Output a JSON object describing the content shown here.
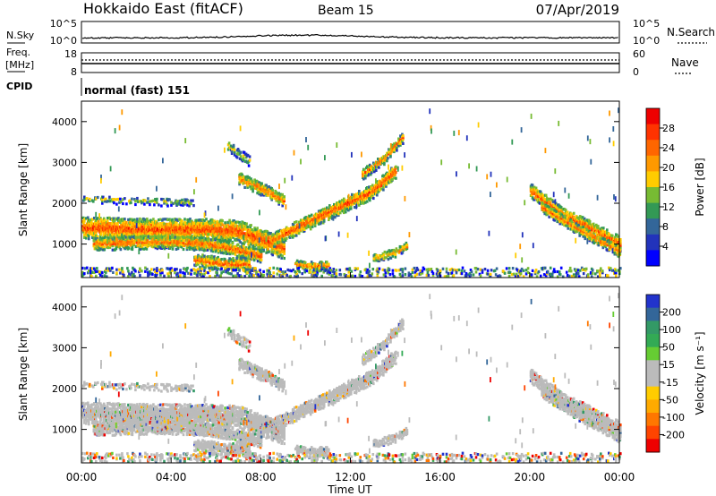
{
  "header": {
    "station": "Hokkaido East (fitACF)",
    "beam": "Beam 15",
    "date": "07/Apr/2019"
  },
  "noise_panel": {
    "left_label": "N.Sky",
    "right_label": "N.Search",
    "left_ticks": [
      "10^5",
      "10^0"
    ],
    "right_ticks": [
      "10^5",
      "10^0"
    ]
  },
  "freq_panel": {
    "left_label_1": "Freq.",
    "left_label_2": "[MHz]",
    "right_label": "Nave",
    "left_ticks": [
      "18",
      "8"
    ],
    "right_ticks": [
      "60",
      "0"
    ]
  },
  "cpid_panel": {
    "label": "CPID",
    "mode": "normal (fast) 151"
  },
  "power_colorbar": {
    "label": "Power [dB]",
    "ticks": [
      "28",
      "24",
      "20",
      "16",
      "12",
      "8",
      "4"
    ],
    "colors": [
      "#ee0000",
      "#ff3300",
      "#ff6600",
      "#ff9900",
      "#ffcc00",
      "#77bb33",
      "#339955",
      "#336699",
      "#2233bb",
      "#0000ff"
    ]
  },
  "velocity_colorbar": {
    "label": "Velocity [m s⁻¹]",
    "ticks": [
      "200",
      "100",
      "50",
      "15",
      "-15",
      "-50",
      "-100",
      "-200"
    ],
    "colors": [
      "#2233cc",
      "#336699",
      "#339966",
      "#33aa55",
      "#66cc33",
      "#bbbbbb",
      "#bbbbbb",
      "#ffcc00",
      "#ffaa00",
      "#ff7700",
      "#ff4400",
      "#ee0000"
    ]
  },
  "chart_data": [
    {
      "type": "heatmap",
      "title": "Power",
      "ylabel": "Slant Range [km]",
      "xlabel": "",
      "x_range_hours": [
        0,
        24
      ],
      "ylim": [
        180,
        4500
      ],
      "yticks": [
        1000,
        2000,
        3000,
        4000
      ],
      "features": [
        {
          "name": "band",
          "t": [
            0,
            3,
            6,
            7,
            8,
            9
          ],
          "r": [
            1400,
            1350,
            1350,
            1300,
            1100,
            900
          ],
          "half_width": 260,
          "level": 0.9
        },
        {
          "name": "band",
          "t": [
            0.5,
            3.5,
            5.5,
            6.5,
            8
          ],
          "r": [
            1000,
            1050,
            1000,
            900,
            700
          ],
          "half_width": 150,
          "level": 0.85
        },
        {
          "name": "band",
          "t": [
            8.5,
            10,
            11.5,
            13,
            14
          ],
          "r": [
            1100,
            1500,
            1900,
            2300,
            2800
          ],
          "half_width": 170,
          "level": 0.9
        },
        {
          "name": "band",
          "t": [
            12.5,
            13.5,
            14.3
          ],
          "r": [
            2700,
            3100,
            3600
          ],
          "half_width": 130,
          "level": 0.75
        },
        {
          "name": "band",
          "t": [
            7,
            8.2,
            9
          ],
          "r": [
            2600,
            2300,
            2050
          ],
          "half_width": 150,
          "level": 0.8
        },
        {
          "name": "band",
          "t": [
            5,
            6.5,
            7.5
          ],
          "r": [
            600,
            500,
            500
          ],
          "half_width": 140,
          "level": 0.85
        },
        {
          "name": "band",
          "t": [
            9.5,
            10.3,
            11
          ],
          "r": [
            500,
            450,
            450
          ],
          "half_width": 100,
          "level": 0.8
        },
        {
          "name": "band",
          "t": [
            13,
            14,
            14.5
          ],
          "r": [
            650,
            800,
            950
          ],
          "half_width": 110,
          "level": 0.7
        },
        {
          "name": "band",
          "t": [
            20,
            21.5,
            23,
            24
          ],
          "r": [
            2300,
            1700,
            1300,
            1000
          ],
          "half_width": 170,
          "level": 0.85
        },
        {
          "name": "band",
          "t": [
            20.5,
            22,
            23.5,
            24
          ],
          "r": [
            1900,
            1400,
            950,
            800
          ],
          "half_width": 130,
          "level": 0.8
        },
        {
          "name": "band",
          "t": [
            0,
            2,
            5
          ],
          "r": [
            2100,
            2050,
            2000
          ],
          "half_width": 80,
          "level": 0.45
        },
        {
          "name": "band",
          "t": [
            6.5,
            7.5
          ],
          "r": [
            3400,
            3000
          ],
          "half_width": 120,
          "level": 0.5
        },
        {
          "name": "ground",
          "t": [
            0,
            24
          ],
          "r": [
            300,
            300
          ],
          "half_width": 90,
          "level": 0.35
        }
      ]
    },
    {
      "type": "heatmap",
      "title": "Velocity",
      "ylabel": "Slant Range [km]",
      "xlabel": "Time UT",
      "x_range_hours": [
        0,
        24
      ],
      "xticks": [
        "00:00",
        "04:00",
        "08:00",
        "12:00",
        "16:00",
        "20:00",
        "00:00"
      ],
      "ylim": [
        180,
        4500
      ],
      "yticks": [
        1000,
        2000,
        3000,
        4000
      ],
      "same_echo_regions_as_power": true
    }
  ]
}
